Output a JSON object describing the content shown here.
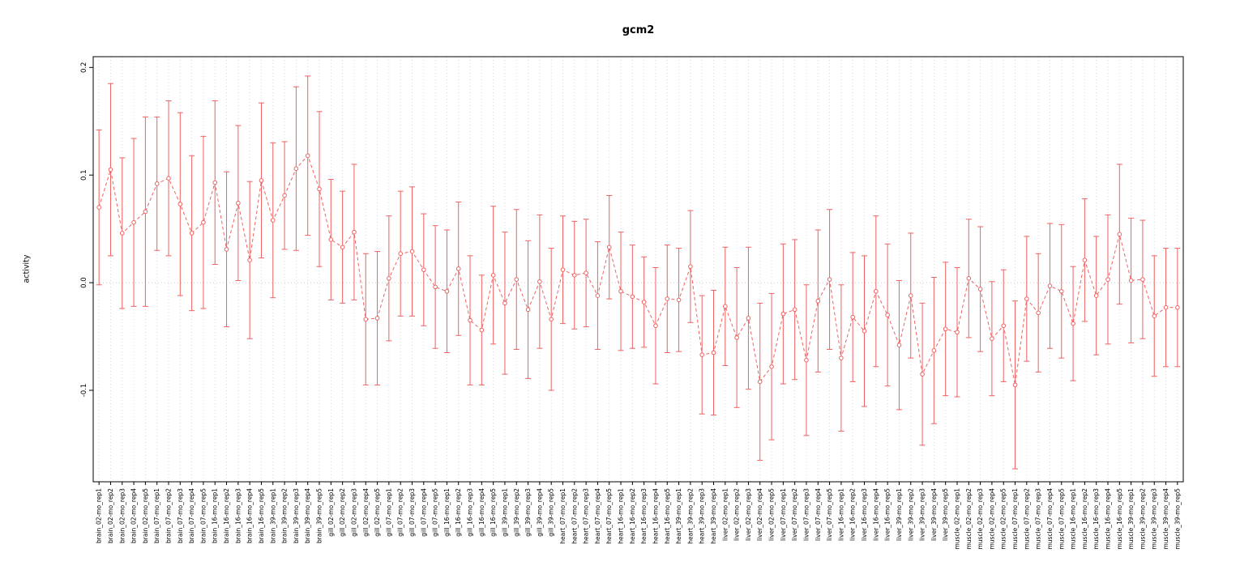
{
  "page": {
    "title": "gcm2"
  },
  "colors": {
    "series": "#ef6262",
    "gridline": "#d6d6d6",
    "zero_line": "#c9c9c9",
    "axis": "#000000",
    "background": "#ffffff"
  },
  "chart_data": {
    "type": "scatter",
    "title": "gcm2",
    "xlabel": "",
    "ylabel": "activity",
    "ylim": [
      -0.185,
      0.21
    ],
    "yticks": [
      -0.1,
      0.0,
      0.1,
      0.2
    ],
    "ytick_labels": [
      "-0.1",
      "0.0",
      "0.1",
      "0.2"
    ],
    "legend": "none",
    "grid": "dotted vertical line at every category; dotted horizontal line at y=0",
    "point_style": "open-circle",
    "line_style": "dashed",
    "error_bars": "symmetric with caps",
    "series_color": "#ef6262",
    "categories": [
      "brain_02-mo_rep1",
      "brain_02-mo_rep2",
      "brain_02-mo_rep3",
      "brain_02-mo_rep4",
      "brain_02-mo_rep5",
      "brain_07-mo_rep1",
      "brain_07-mo_rep2",
      "brain_07-mo_rep3",
      "brain_07-mo_rep4",
      "brain_07-mo_rep5",
      "brain_16-mo_rep1",
      "brain_16-mo_rep2",
      "brain_16-mo_rep3",
      "brain_16-mo_rep4",
      "brain_16-mo_rep5",
      "brain_39-mo_rep1",
      "brain_39-mo_rep2",
      "brain_39-mo_rep3",
      "brain_39-mo_rep4",
      "brain_39-mo_rep5",
      "gill_02-mo_rep1",
      "gill_02-mo_rep2",
      "gill_02-mo_rep3",
      "gill_02-mo_rep4",
      "gill_02-mo_rep5",
      "gill_07-mo_rep1",
      "gill_07-mo_rep2",
      "gill_07-mo_rep3",
      "gill_07-mo_rep4",
      "gill_07-mo_rep5",
      "gill_16-mo_rep1",
      "gill_16-mo_rep2",
      "gill_16-mo_rep3",
      "gill_16-mo_rep4",
      "gill_16-mo_rep5",
      "gill_39-mo_rep1",
      "gill_39-mo_rep2",
      "gill_39-mo_rep3",
      "gill_39-mo_rep4",
      "gill_39-mo_rep5",
      "heart_07-mo_rep1",
      "heart_07-mo_rep2",
      "heart_07-mo_rep3",
      "heart_07-mo_rep4",
      "heart_07-mo_rep5",
      "heart_16-mo_rep1",
      "heart_16-mo_rep2",
      "heart_16-mo_rep3",
      "heart_16-mo_rep4",
      "heart_16-mo_rep5",
      "heart_39-mo_rep1",
      "heart_39-mo_rep2",
      "heart_39-mo_rep3",
      "heart_39-mo_rep4",
      "liver_02-mo_rep1",
      "liver_02-mo_rep2",
      "liver_02-mo_rep3",
      "liver_02-mo_rep4",
      "liver_02-mo_rep5",
      "liver_07-mo_rep1",
      "liver_07-mo_rep2",
      "liver_07-mo_rep3",
      "liver_07-mo_rep4",
      "liver_07-mo_rep5",
      "liver_16-mo_rep1",
      "liver_16-mo_rep2",
      "liver_16-mo_rep3",
      "liver_16-mo_rep4",
      "liver_16-mo_rep5",
      "liver_39-mo_rep1",
      "liver_39-mo_rep2",
      "liver_39-mo_rep3",
      "liver_39-mo_rep4",
      "liver_39-mo_rep5",
      "muscle_02-mo_rep1",
      "muscle_02-mo_rep2",
      "muscle_02-mo_rep3",
      "muscle_02-mo_rep4",
      "muscle_02-mo_rep5",
      "muscle_07-mo_rep1",
      "muscle_07-mo_rep2",
      "muscle_07-mo_rep3",
      "muscle_07-mo_rep4",
      "muscle_07-mo_rep5",
      "muscle_16-mo_rep1",
      "muscle_16-mo_rep2",
      "muscle_16-mo_rep3",
      "muscle_16-mo_rep4",
      "muscle_16-mo_rep5",
      "muscle_39-mo_rep1",
      "muscle_39-mo_rep2",
      "muscle_39-mo_rep3",
      "muscle_39-mo_rep4",
      "muscle_39-mo_rep5"
    ],
    "values": [
      0.07,
      0.105,
      0.046,
      0.056,
      0.066,
      0.092,
      0.097,
      0.073,
      0.046,
      0.056,
      0.093,
      0.031,
      0.074,
      0.021,
      0.095,
      0.058,
      0.081,
      0.106,
      0.118,
      0.087,
      0.04,
      0.033,
      0.047,
      -0.034,
      -0.033,
      0.004,
      0.027,
      0.029,
      0.012,
      -0.004,
      -0.008,
      0.013,
      -0.035,
      -0.044,
      0.007,
      -0.019,
      0.003,
      -0.025,
      0.001,
      -0.034,
      0.012,
      0.007,
      0.009,
      -0.012,
      0.033,
      -0.008,
      -0.013,
      -0.018,
      -0.04,
      -0.015,
      -0.016,
      0.015,
      -0.067,
      -0.065,
      -0.022,
      -0.051,
      -0.033,
      -0.092,
      -0.078,
      -0.029,
      -0.025,
      -0.072,
      -0.017,
      0.003,
      -0.07,
      -0.032,
      -0.045,
      -0.008,
      -0.03,
      -0.058,
      -0.012,
      -0.085,
      -0.063,
      -0.043,
      -0.046,
      0.004,
      -0.006,
      -0.052,
      -0.04,
      -0.095,
      -0.015,
      -0.028,
      -0.003,
      -0.008,
      -0.038,
      0.021,
      -0.012,
      0.003,
      0.045,
      0.002,
      0.003,
      -0.031,
      -0.023,
      -0.023
    ],
    "errors": [
      0.072,
      0.08,
      0.07,
      0.078,
      0.088,
      0.062,
      0.072,
      0.085,
      0.072,
      0.08,
      0.076,
      0.072,
      0.072,
      0.073,
      0.072,
      0.072,
      0.05,
      0.076,
      0.074,
      0.072,
      0.056,
      0.052,
      0.063,
      0.061,
      0.062,
      0.058,
      0.058,
      0.06,
      0.052,
      0.057,
      0.057,
      0.062,
      0.06,
      0.051,
      0.064,
      0.066,
      0.065,
      0.064,
      0.062,
      0.066,
      0.05,
      0.05,
      0.05,
      0.05,
      0.048,
      0.055,
      0.048,
      0.042,
      0.054,
      0.05,
      0.048,
      0.052,
      0.055,
      0.058,
      0.055,
      0.065,
      0.066,
      0.073,
      0.068,
      0.065,
      0.065,
      0.07,
      0.066,
      0.065,
      0.068,
      0.06,
      0.07,
      0.07,
      0.066,
      0.06,
      0.058,
      0.066,
      0.068,
      0.062,
      0.06,
      0.055,
      0.058,
      0.053,
      0.052,
      0.078,
      0.058,
      0.055,
      0.058,
      0.062,
      0.053,
      0.057,
      0.055,
      0.06,
      0.065,
      0.058,
      0.055,
      0.056,
      0.055,
      0.055
    ]
  }
}
